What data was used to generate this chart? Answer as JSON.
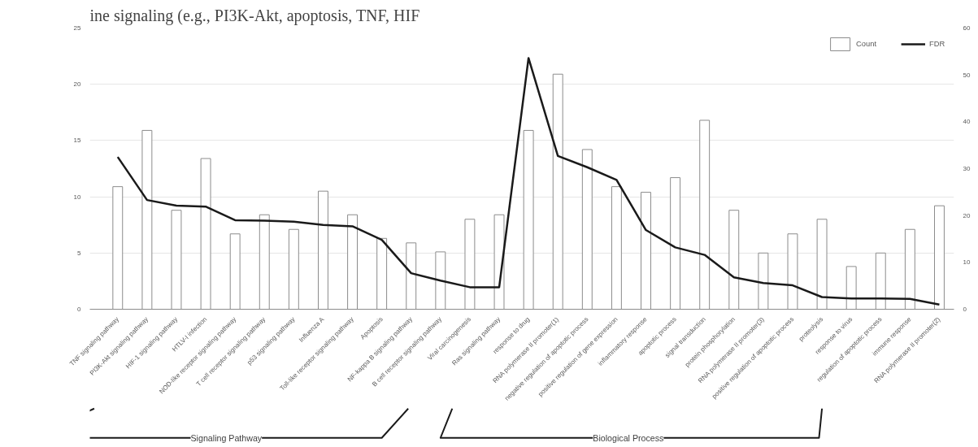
{
  "chart_data": {
    "type": "bar",
    "title": "ine signaling (e.g., PI3K-Akt, apoptosis, TNF, HIF",
    "categories": [
      "TNF signaling pathway",
      "PI3K-Akt signaling pathway",
      "HIF-1 signaling pathway",
      "HTLV-I infection",
      "NOD-like receptor signaling pathway",
      "T cell receptor signaling pathway",
      "p53 signaling pathway",
      "Influenza A",
      "Toll-like receptor signaling pathway",
      "Apoptosis",
      "NF-kappa B signaling pathway",
      "B cell receptor signaling pathway",
      "Viral carcinogenesis",
      "Ras signaling pathway",
      "response to drug",
      "RNA polymerase II promoter(1)",
      "negative regulation of apoptotic process",
      "positive regulation of gene expression",
      "inflammatory response",
      "apoptotic process",
      "signal transduction",
      "protein phosphorylation",
      "RNA polymerase II promoter(3)",
      "positive regulation of apoptotic process",
      "proteolysis",
      "response to virus",
      "regulation of apoptotic process",
      "immune response",
      "RNA polymerase II promoter(2)"
    ],
    "series": [
      {
        "name": "Count",
        "color": "#ffffff",
        "values": [
          10.9,
          15.9,
          8.8,
          13.4,
          6.7,
          8.4,
          7.1,
          10.5,
          8.4,
          6.3,
          5.9,
          5.1,
          8.0,
          8.4,
          15.9,
          20.9,
          14.2,
          10.9,
          10.4,
          11.7,
          16.8,
          8.8,
          5.0,
          6.7,
          8.0,
          3.8,
          5.0,
          7.1,
          9.2
        ]
      },
      {
        "name": "FDR",
        "type": "line",
        "axis": "y2",
        "color": "#1a1a1a",
        "values": [
          32.5,
          23.3,
          22.1,
          21.9,
          19.0,
          18.9,
          18.7,
          18.0,
          17.7,
          14.8,
          7.7,
          6.1,
          4.7,
          4.7,
          53.6,
          32.7,
          30.3,
          27.6,
          16.9,
          13.2,
          11.6,
          6.8,
          5.6,
          5.1,
          2.6,
          2.3,
          2.3,
          2.2,
          1.0
        ]
      }
    ],
    "ylim": [
      0,
      25
    ],
    "yticks": [
      0,
      5,
      10,
      15,
      20,
      25
    ],
    "y2lim": [
      0,
      60
    ],
    "y2ticks": [
      0,
      10,
      20,
      30,
      40,
      50,
      60
    ],
    "grid": "y",
    "legend": "top right",
    "annotations": [
      "Signaling Pathway",
      "Biological Process"
    ]
  }
}
